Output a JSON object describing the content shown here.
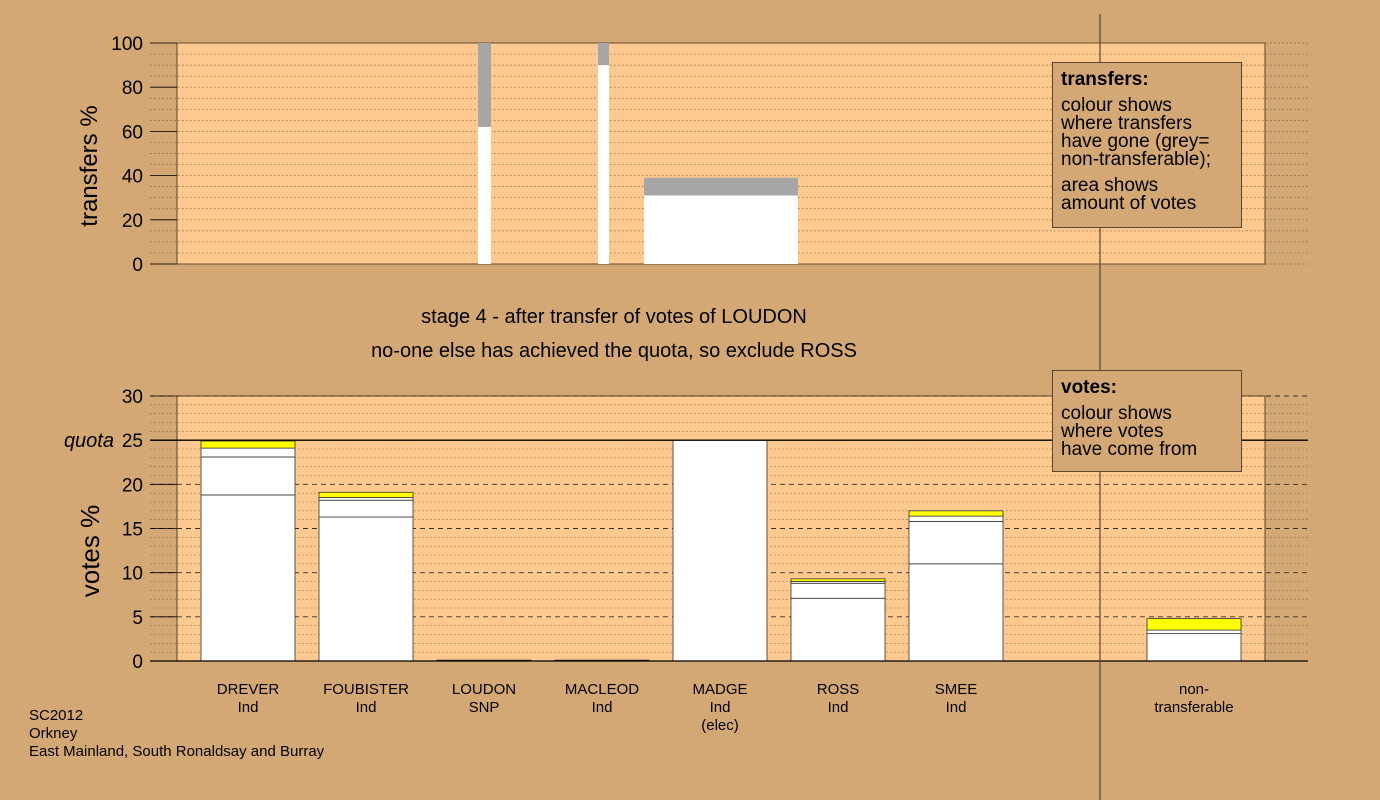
{
  "colors": {
    "background": "#d4a874",
    "panel": "#fec98e",
    "ntgrey": "#a6a6a6",
    "highlight": "#ffff00",
    "bar": "#ffffff"
  },
  "stage": {
    "line1": "stage 4 - after transfer of votes of LOUDON",
    "line2": "no-one else has achieved the quota, so exclude ROSS"
  },
  "footer": {
    "election": "SC2012",
    "council": "Orkney",
    "ward": "East Mainland, South Ronaldsay and Burray"
  },
  "legend_transfers": {
    "title": "transfers:",
    "lines_a": [
      "colour shows",
      "where transfers",
      "have gone (grey=",
      "non-transferable);"
    ],
    "lines_b": [
      "area shows",
      "amount of votes"
    ]
  },
  "legend_votes": {
    "title": "votes:",
    "lines": [
      "colour shows",
      "where votes",
      "have come from"
    ]
  },
  "chart_data": [
    {
      "id": "transfers",
      "type": "bar",
      "ylabel": "transfers %",
      "ylim": [
        0,
        100
      ],
      "yticks": [
        "0",
        "20",
        "40",
        "60",
        "80",
        "100"
      ],
      "bars": [
        {
          "candidate": "FOUBISTER",
          "transferred": 62,
          "nontransferable": 38
        },
        {
          "candidate": "LOUDON",
          "transferred": 90,
          "nontransferable": 10
        },
        {
          "candidate": "MACLEOD",
          "transferred": 31,
          "nontransferable": 8
        }
      ]
    },
    {
      "id": "votes",
      "type": "bar",
      "ylabel": "votes %",
      "ylim": [
        0,
        30
      ],
      "yticks": [
        "0",
        "5",
        "10",
        "15",
        "20",
        "25",
        "30"
      ],
      "quota": 25,
      "quota_label": "quota",
      "grid": true,
      "candidates": [
        {
          "name": "DREVER",
          "party": "Ind",
          "segments": [
            18.8,
            4.3,
            1.0,
            0.8
          ]
        },
        {
          "name": "FOUBISTER",
          "party": "Ind",
          "segments": [
            16.3,
            1.9,
            0.3,
            0.6
          ]
        },
        {
          "name": "LOUDON",
          "party": "SNP",
          "segments": [
            0.1
          ]
        },
        {
          "name": "MACLEOD",
          "party": "Ind",
          "segments": [
            0.1
          ]
        },
        {
          "name": "MADGE",
          "party": "Ind",
          "status": "(elec)",
          "segments": [
            25.0
          ]
        },
        {
          "name": "ROSS",
          "party": "Ind",
          "segments": [
            7.1,
            1.7,
            0.2,
            0.3
          ]
        },
        {
          "name": "SMEE",
          "party": "Ind",
          "segments": [
            11.0,
            4.8,
            0.6,
            0.6
          ]
        }
      ],
      "nontransferable": {
        "label_line1": "non-",
        "label_line2": "transferable",
        "segments": [
          3.1,
          0.4,
          1.3
        ]
      }
    }
  ]
}
